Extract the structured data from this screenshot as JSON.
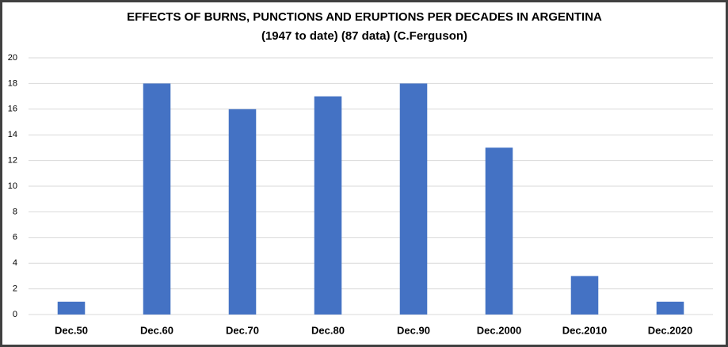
{
  "chart_data": {
    "type": "bar",
    "title": "EFFECTS OF BURNS, PUNCTIONS AND ERUPTIONS PER DECADES IN ARGENTINA",
    "subtitle": "(1947 to date) (87 data) (C.Ferguson)",
    "categories": [
      "Dec.50",
      "Dec.60",
      "Dec.70",
      "Dec.80",
      "Dec.90",
      "Dec.2000",
      "Dec.2010",
      "Dec.2020"
    ],
    "values": [
      1,
      18,
      16,
      17,
      18,
      13,
      3,
      1
    ],
    "color": "#4472c4",
    "ylim": [
      0,
      20
    ],
    "yticks": [
      0,
      2,
      4,
      6,
      8,
      10,
      12,
      14,
      16,
      18,
      20
    ],
    "grid": true
  }
}
